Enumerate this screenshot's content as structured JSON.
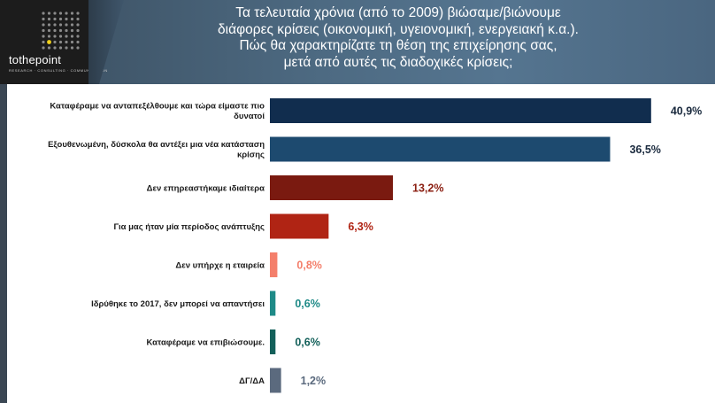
{
  "header": {
    "logo_text": "tothepoint",
    "logo_tagline": "RESEARCH · CONSULTING · COMMUNICATION",
    "title_lines": [
      "Τα τελευταία χρόνια (από το 2009) βιώσαμε/βιώνουμε",
      "διάφορες κρίσεις (οικονομική, υγειονομική, ενεργειακή κ.α.).",
      "Πώς θα χαρακτηρίζατε τη θέση της επιχείρησης σας,",
      "μετά από αυτές τις διαδοχικές κρίσεις;"
    ]
  },
  "chart_data": {
    "type": "bar",
    "orientation": "horizontal",
    "categories": [
      [
        "Καταφέραμε να ανταπεξέλθουμε και τώρα είμαστε πιο",
        "δυνατοί"
      ],
      [
        "Εξουθενωμένη, δύσκολα θα αντέξει μια νέα κατάσταση",
        "κρίσης"
      ],
      [
        "Δεν επηρεαστήκαμε ιδιαίτερα"
      ],
      [
        "Για μας ήταν μία περίοδος ανάπτυξης"
      ],
      [
        "Δεν υπήρχε η εταιρεία"
      ],
      [
        "Ιδρύθηκε το 2017, δεν μπορεί να απαντήσει"
      ],
      [
        "Καταφέραμε να επιβιώσουμε."
      ],
      [
        "ΔΓ/ΔΑ"
      ]
    ],
    "values": [
      40.9,
      36.5,
      13.2,
      6.3,
      0.8,
      0.6,
      0.6,
      1.2
    ],
    "value_labels": [
      "40,9%",
      "36,5%",
      "13,2%",
      "6,3%",
      "0,8%",
      "0,6%",
      "0,6%",
      "1,2%"
    ],
    "colors": [
      "#112d4e",
      "#1d4a6f",
      "#7a1a10",
      "#b02414",
      "#f47f6b",
      "#1e8a87",
      "#13605a",
      "#5b6a7e"
    ],
    "label_colors": [
      "#1a2a3e",
      "#1a2a3e",
      "#8b1f12",
      "#b02414",
      "#f47f6b",
      "#1e8a87",
      "#13605a",
      "#5b6a7e"
    ],
    "xlim": [
      0,
      45
    ],
    "grid": false,
    "legend": "none"
  }
}
